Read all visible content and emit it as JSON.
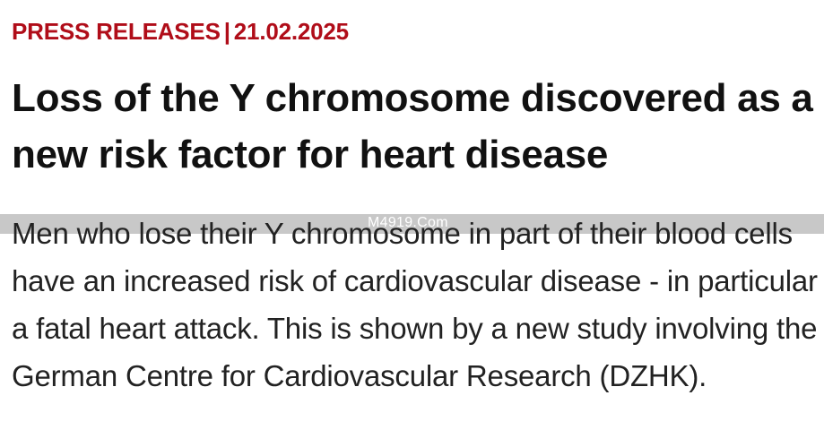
{
  "article": {
    "category": "PRESS RELEASES",
    "separator": "|",
    "date": "21.02.2025",
    "title": "Loss of the Y chromosome discovered as a new risk factor for heart disease",
    "lead": "Men who lose their Y chromosome in part of their blood cells have an increased risk of cardiovascular disease - in particular a fatal heart attack. This is shown by a new study involving the German Centre for Cardiovascular Research (DZHK)."
  },
  "overlay": {
    "watermark_text": "M4919.Com"
  },
  "colors": {
    "accent": "#b00d19",
    "heading": "#111111",
    "body": "#222222",
    "band": "#c8c8c8"
  }
}
